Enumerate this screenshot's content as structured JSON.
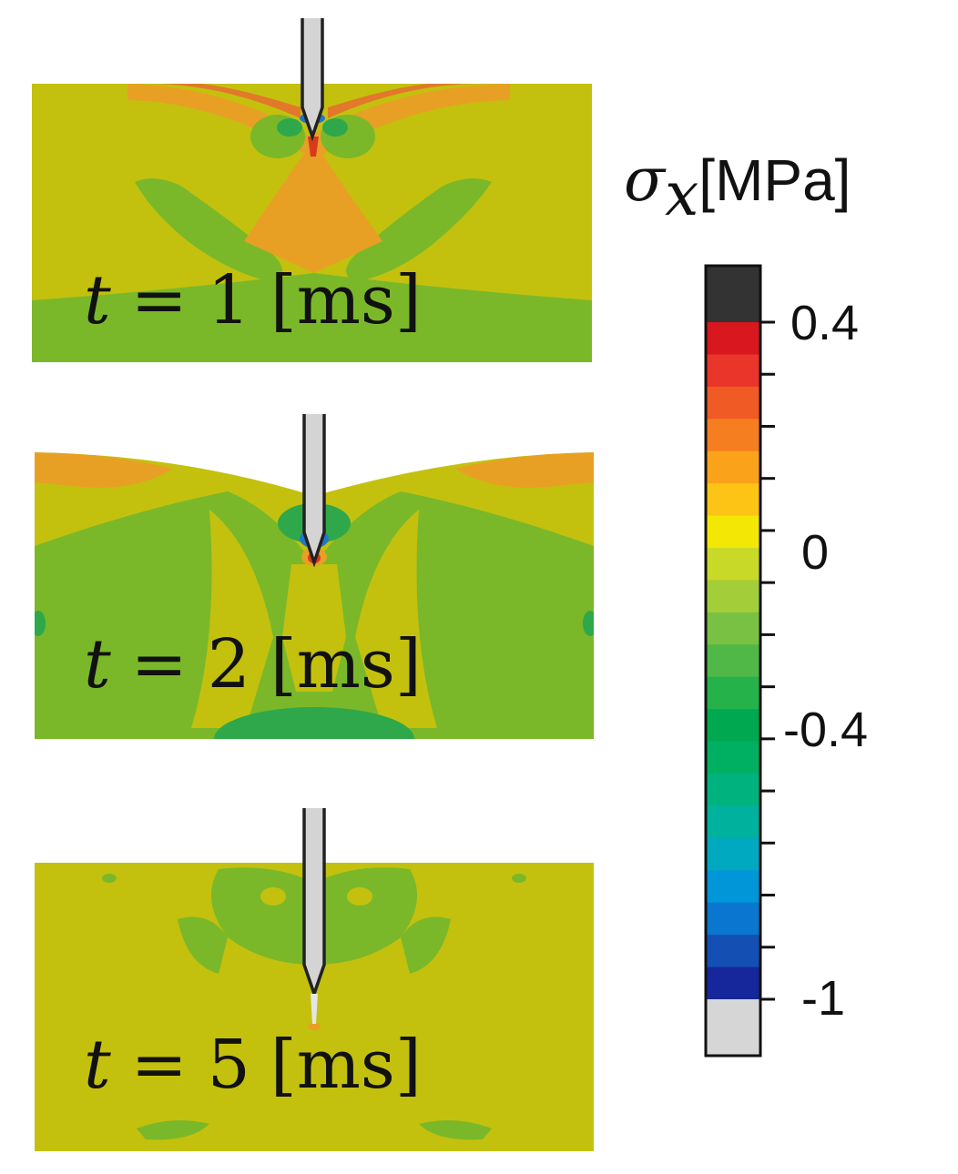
{
  "panels": [
    {
      "t_var": "t",
      "eq": "=",
      "value": "1",
      "unit": "[ms]"
    },
    {
      "t_var": "t",
      "eq": "=",
      "value": "2",
      "unit": "[ms]"
    },
    {
      "t_var": "t",
      "eq": "=",
      "value": "5",
      "unit": "[ms]"
    }
  ],
  "colorbar": {
    "symbol": "σ",
    "subscript": "x",
    "unit": "[MPa]",
    "tick_labels": [
      "0.4",
      "0",
      "-0.4",
      "-1"
    ],
    "colors": [
      "#333333",
      "#d8171f",
      "#e9352a",
      "#ef5a25",
      "#f57f20",
      "#f9a21a",
      "#fdc416",
      "#f3e705",
      "#c9d928",
      "#a4cd3a",
      "#79c143",
      "#4fb847",
      "#25b24a",
      "#00a94f",
      "#00b062",
      "#00b37e",
      "#00b29e",
      "#00a9c0",
      "#0096d8",
      "#0a76cf",
      "#1450b4",
      "#15279a",
      "#d6d6d6"
    ],
    "colors_note": "top to bottom: above-range, bands from 0.4 to -1, below-range"
  },
  "colors": {
    "base": "#c3c10e",
    "green": "#7ab829",
    "orange": "#e7a024",
    "red": "#d93a1f",
    "darkgreen": "#2ea84a",
    "blue": "#1f78c8",
    "needle": "#d4d4d4"
  }
}
